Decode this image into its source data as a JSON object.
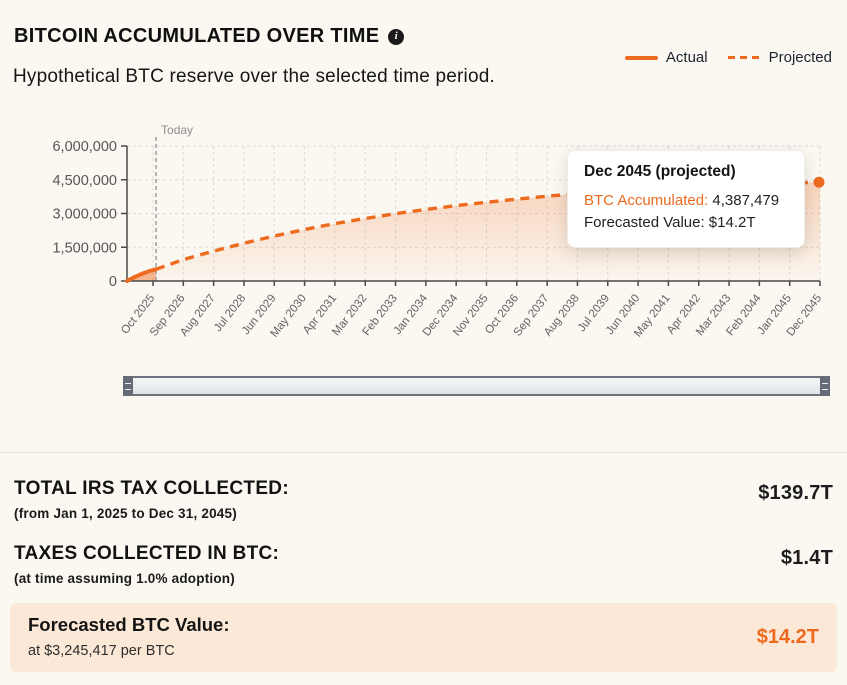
{
  "header": {
    "title": "BITCOIN ACCUMULATED OVER TIME",
    "subtitle": "Hypothetical BTC reserve over the selected time period."
  },
  "icons": {
    "info_glyph": "i"
  },
  "legend": {
    "actual_label": "Actual",
    "projected_label": "Projected"
  },
  "colors": {
    "accent": "#ed6a1e",
    "highlight_bg": "#fce8d7",
    "grid": "#dddbd6",
    "axis": "#4a4a4a",
    "tooltip_bg": "#ffffff",
    "page_bg": "#fbf8f2"
  },
  "chart_data": {
    "type": "line",
    "title": "BITCOIN ACCUMULATED OVER TIME",
    "xlabel": "",
    "ylabel": "",
    "ylim": [
      0,
      6000000
    ],
    "grid": true,
    "legend_position": "top-right",
    "y_ticks": [
      0,
      1500000,
      3000000,
      4500000,
      6000000
    ],
    "y_tick_labels": [
      "0",
      "1,500,000",
      "3,000,000",
      "4,500,000",
      "6,000,000"
    ],
    "x_tick_labels": [
      "Oct 2025",
      "Sep 2026",
      "Aug 2027",
      "Jul 2028",
      "Jun 2029",
      "May 2030",
      "Apr 2031",
      "Mar 2032",
      "Feb 2033",
      "Jan 2034",
      "Dec 2034",
      "Nov 2035",
      "Oct 2036",
      "Sep 2037",
      "Aug 2038",
      "Jul 2039",
      "Jun 2040",
      "May 2041",
      "Apr 2042",
      "Mar 2043",
      "Feb 2044",
      "Jan 2045",
      "Dec 2045"
    ],
    "today_annotation": {
      "label": "Today",
      "x_index": 0.1
    },
    "series": [
      {
        "name": "Actual",
        "style": "solid",
        "x": [
          -0.857,
          -0.6,
          -0.35,
          -0.12,
          0.1
        ],
        "values": [
          0,
          180000,
          330000,
          440000,
          520000
        ]
      },
      {
        "name": "Projected",
        "style": "dashed",
        "x": [
          0.1,
          1,
          2,
          3,
          4,
          5,
          6,
          7,
          8,
          9,
          10,
          11,
          12,
          13,
          14,
          15,
          16,
          17,
          18,
          19,
          20,
          21,
          22
        ],
        "values": [
          520000,
          950000,
          1330000,
          1680000,
          2000000,
          2290000,
          2550000,
          2780000,
          2990000,
          3180000,
          3350000,
          3500000,
          3640000,
          3770000,
          3880000,
          3970000,
          4060000,
          4140000,
          4210000,
          4270000,
          4320000,
          4360000,
          4387479
        ]
      }
    ],
    "end_point": {
      "x_index": 22,
      "value": 4387479
    }
  },
  "tooltip": {
    "title": "Dec 2045 (projected)",
    "rows": [
      {
        "label": "BTC Accumulated:",
        "value": "4,387,479"
      },
      {
        "label": "Forecasted Value:",
        "value": "$14.2T"
      }
    ]
  },
  "summary": {
    "rows": [
      {
        "title": "TOTAL IRS TAX COLLECTED:",
        "subtitle": "(from Jan 1, 2025 to Dec 31, 2045)",
        "value": "$139.7T"
      },
      {
        "title": "TAXES COLLECTED IN BTC:",
        "subtitle": "(at time assuming 1.0% adoption)",
        "value": "$1.4T"
      },
      {
        "title": "Forecasted BTC Value:",
        "subtitle": "at $3,245,417 per BTC",
        "value": "$14.2T"
      }
    ]
  }
}
